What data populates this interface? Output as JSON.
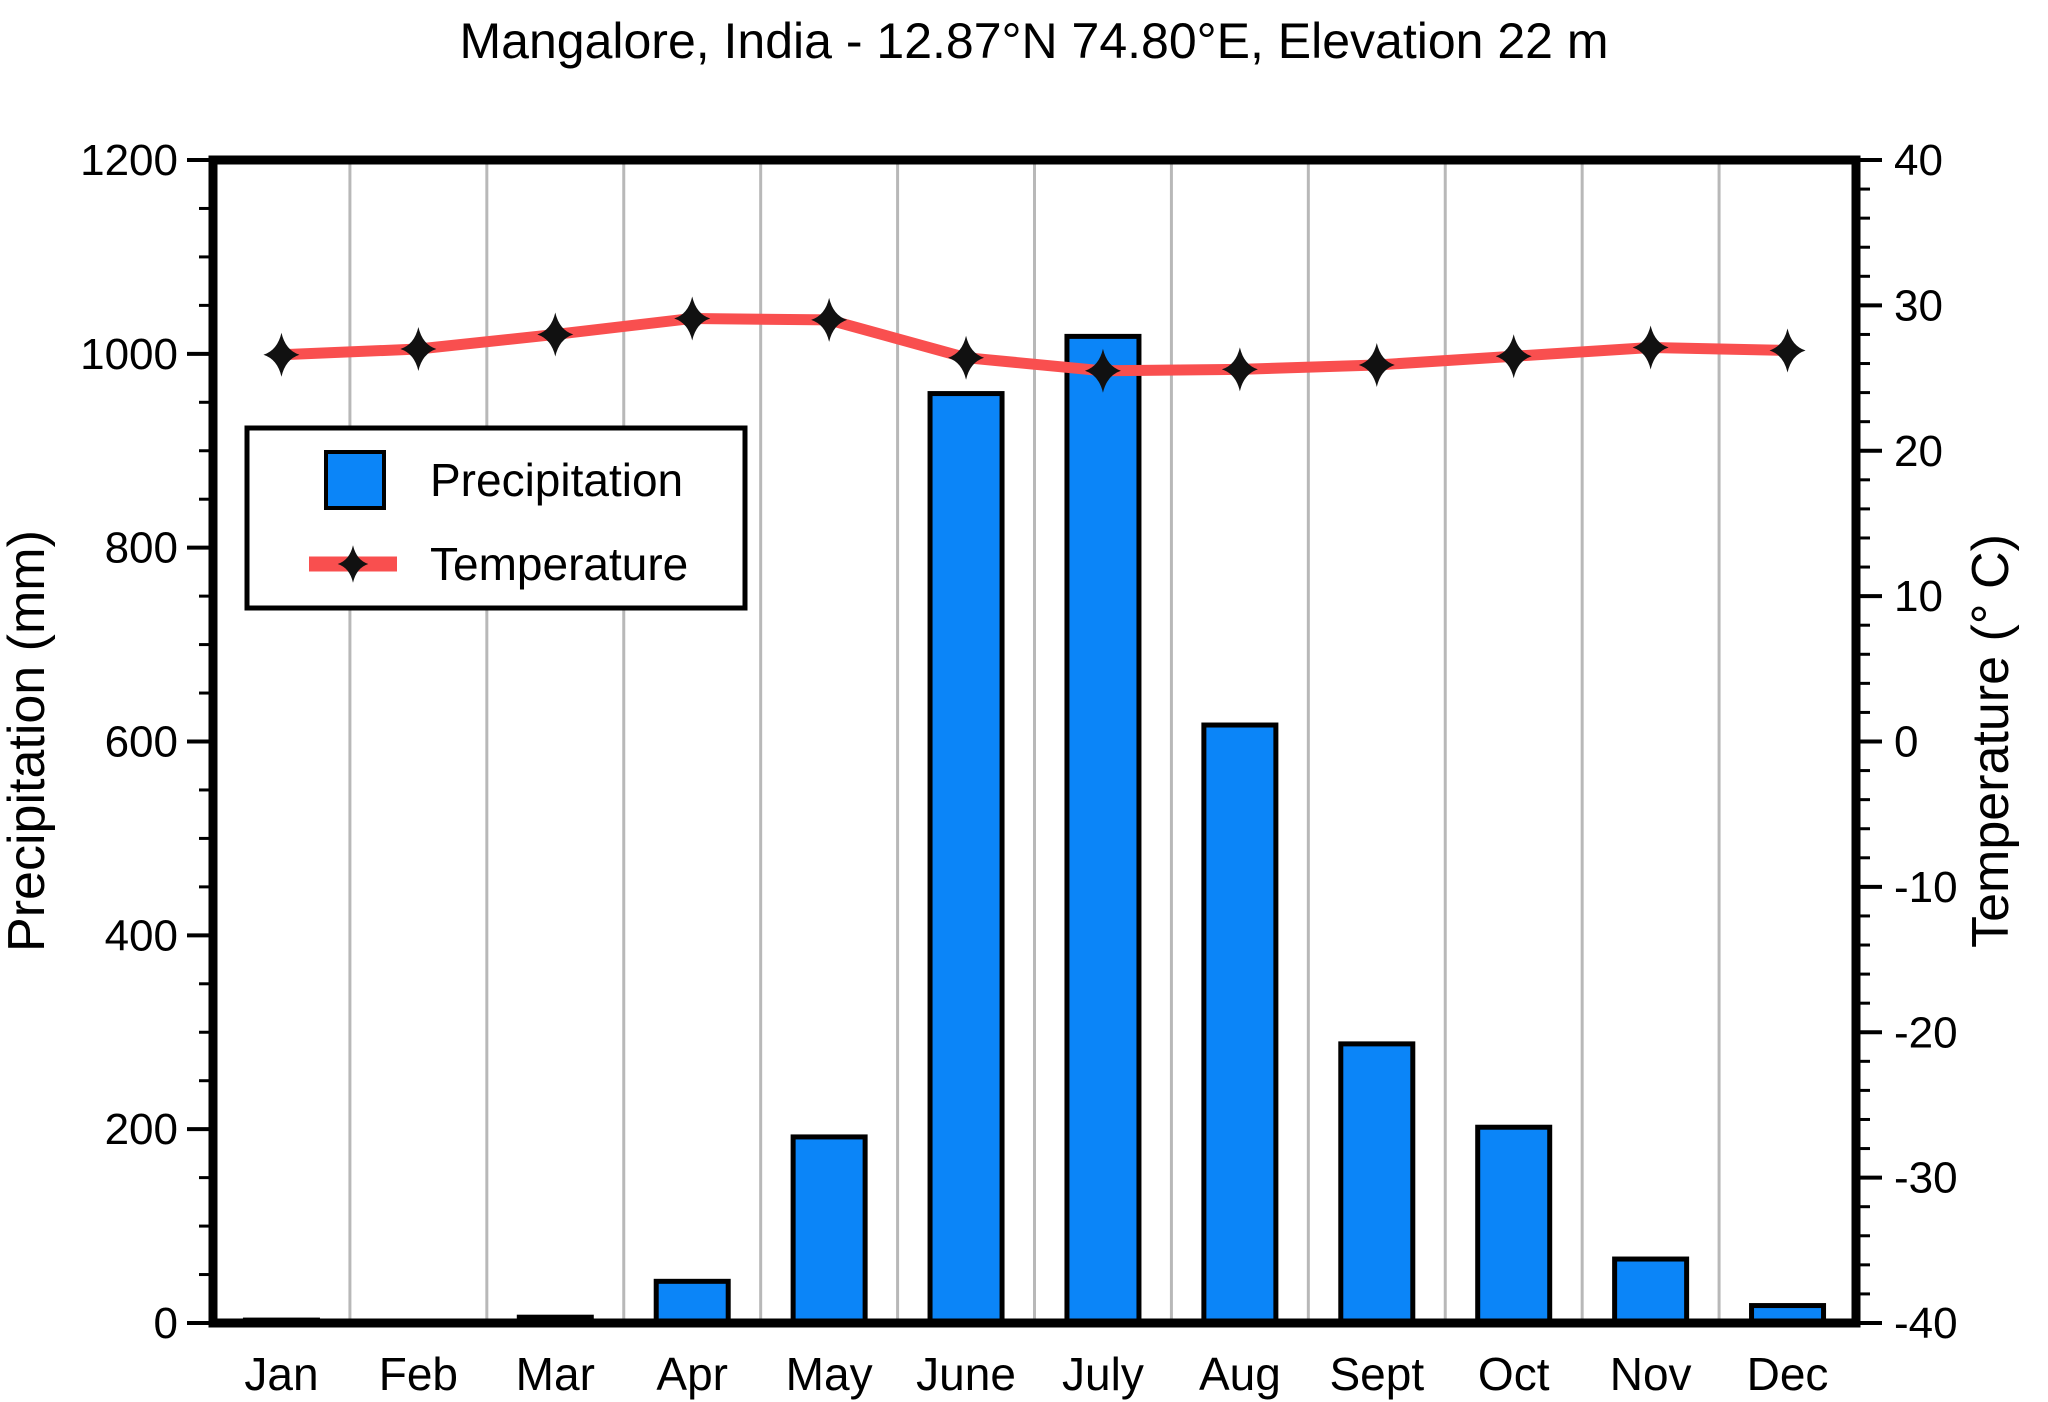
{
  "title": "Mangalore, India - 12.87°N 74.80°E, Elevation 22 m",
  "chart_data": {
    "type": "bar",
    "subtype": "climate-chart (bar + line, dual axis)",
    "categories": [
      "Jan",
      "Feb",
      "Mar",
      "Apr",
      "May",
      "June",
      "July",
      "Aug",
      "Sept",
      "Oct",
      "Nov",
      "Dec"
    ],
    "series": [
      {
        "name": "Precipitation",
        "type": "bar",
        "axis": "left",
        "unit": "mm",
        "values": [
          3,
          1,
          6,
          43,
          192,
          959,
          1018,
          617,
          288,
          202,
          66,
          18
        ]
      },
      {
        "name": "Temperature",
        "type": "line",
        "axis": "right",
        "unit": "°C",
        "marker": "four-point-diamond",
        "values": [
          26.6,
          27.0,
          28.0,
          29.1,
          29.0,
          26.4,
          25.5,
          25.6,
          25.9,
          26.5,
          27.1,
          26.9
        ]
      }
    ],
    "left_axis": {
      "label": "Precipitation (mm)",
      "min": 0,
      "max": 1200,
      "major_tick_step": 200,
      "minor_tick_step": 50,
      "tick_labels": [
        "0",
        "200",
        "400",
        "600",
        "800",
        "1000",
        "1200"
      ]
    },
    "right_axis": {
      "label": "Temperature (° C)",
      "min": -40,
      "max": 40,
      "major_tick_step": 10,
      "minor_tick_step": 2,
      "tick_labels": [
        "-40",
        "-30",
        "-20",
        "-10",
        "0",
        "10",
        "20",
        "30",
        "40"
      ]
    },
    "grid": "vertical lines at month boundaries",
    "legend_position": "upper-left inside plot"
  },
  "colors": {
    "bar_fill": "#0b85f8",
    "bar_stroke": "#000000",
    "line": "#f94f4f",
    "marker": "#111111",
    "grid": "#b8b8b8",
    "axis": "#000000",
    "background": "#ffffff"
  }
}
